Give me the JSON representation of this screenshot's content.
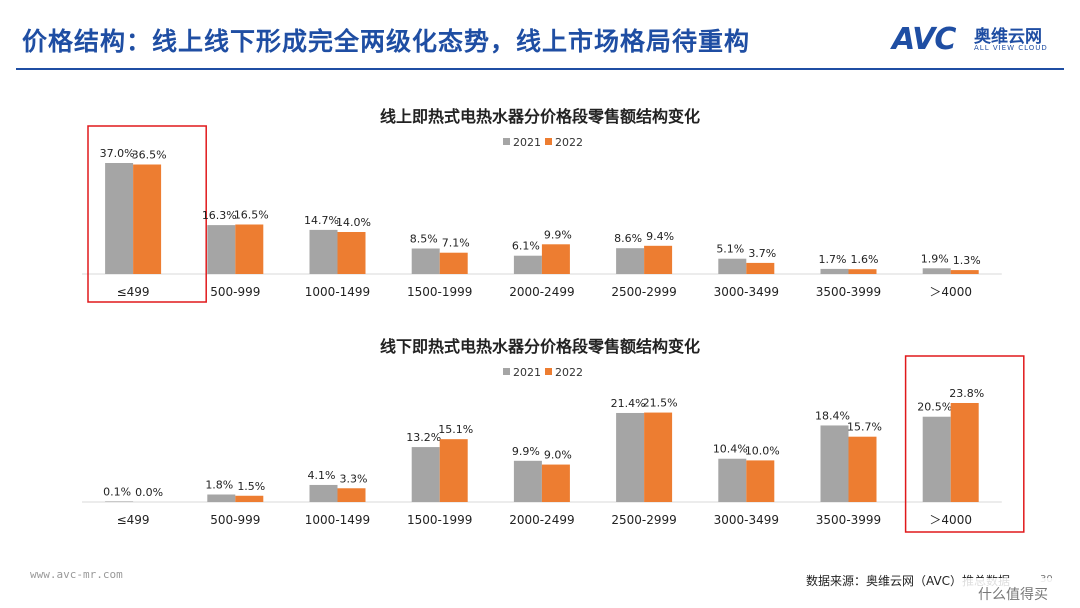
{
  "page": {
    "title": "价格结构：线上线下形成完全两级化态势，线上市场格局待重构",
    "logo_mark": "AVC",
    "logo_cn": "奥维云网",
    "logo_en": "ALL VIEW CLOUD",
    "footer_url": "www.avc-mr.com",
    "footer_source": "数据来源：奥维云网（AVC）推总数据",
    "page_number": "30",
    "corner_badge": "什么值得买",
    "colors": {
      "primary": "#1f4ea3",
      "series_2021": "#a5a5a5",
      "series_2022": "#ed7d31",
      "highlight": "#e0191b"
    }
  },
  "chart_data": [
    {
      "type": "bar",
      "title": "线上即热式电热水器分价格段零售额结构变化",
      "categories": [
        "≤499",
        "500-999",
        "1000-1499",
        "1500-1999",
        "2000-2499",
        "2500-2999",
        "3000-3499",
        "3500-3999",
        "＞4000"
      ],
      "series": [
        {
          "name": "2021",
          "values": [
            37.0,
            16.3,
            14.7,
            8.5,
            6.1,
            8.6,
            5.1,
            1.7,
            1.9
          ],
          "labels": [
            "37.0%",
            "16.3%",
            "14.7%",
            "8.5%",
            "6.1%",
            "8.6%",
            "5.1%",
            "1.7%",
            "1.9%"
          ]
        },
        {
          "name": "2022",
          "values": [
            36.5,
            16.5,
            14.0,
            7.1,
            9.9,
            9.4,
            3.7,
            1.6,
            1.3
          ],
          "labels": [
            "36.5%",
            "16.5%",
            "14.0%",
            "7.1%",
            "9.9%",
            "9.4%",
            "3.7%",
            "1.6%",
            "1.3%"
          ]
        }
      ],
      "highlight_category": "≤499",
      "legend": "top-center",
      "ylim": [
        0,
        40
      ]
    },
    {
      "type": "bar",
      "title": "线下即热式电热水器分价格段零售额结构变化",
      "categories": [
        "≤499",
        "500-999",
        "1000-1499",
        "1500-1999",
        "2000-2499",
        "2500-2999",
        "3000-3499",
        "3500-3999",
        "＞4000"
      ],
      "series": [
        {
          "name": "2021",
          "values": [
            0.1,
            1.8,
            4.1,
            13.2,
            9.9,
            21.4,
            10.4,
            18.4,
            20.5
          ],
          "labels": [
            "0.1%",
            "1.8%",
            "4.1%",
            "13.2%",
            "9.9%",
            "21.4%",
            "10.4%",
            "18.4%",
            "20.5%"
          ]
        },
        {
          "name": "2022",
          "values": [
            0.0,
            1.5,
            3.3,
            15.1,
            9.0,
            21.5,
            10.0,
            15.7,
            23.8
          ],
          "labels": [
            "0.0%",
            "1.5%",
            "3.3%",
            "15.1%",
            "9.0%",
            "21.5%",
            "10.0%",
            "15.7%",
            "23.8%"
          ]
        }
      ],
      "highlight_category": "＞4000",
      "legend": "top-center",
      "ylim": [
        0,
        25
      ]
    }
  ]
}
